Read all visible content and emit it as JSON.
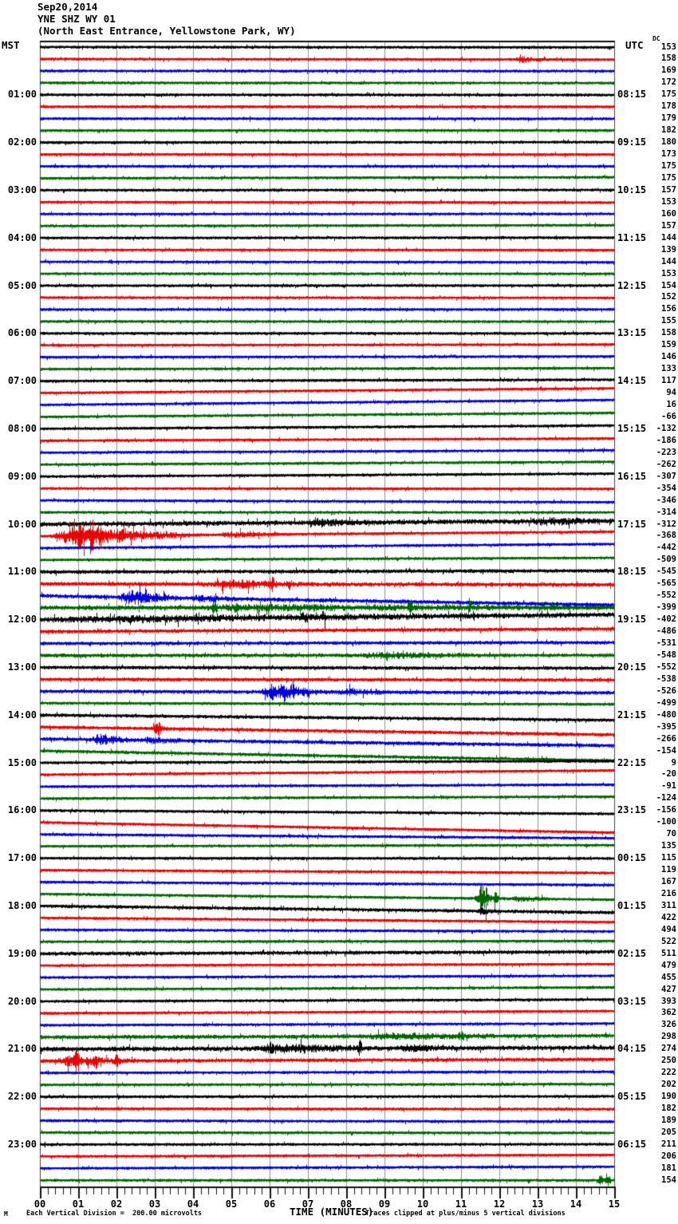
{
  "header": {
    "date": "Sep20,2014",
    "station": "YNE SHZ WY 01",
    "location": "(North East Entrance, Yellowstone Park, WY)"
  },
  "axis": {
    "left_header": "MST",
    "right_header": "UTC",
    "dc_header": "DC",
    "x_axis_label": "TIME (MINUTES)",
    "x_tick_labels": [
      "00",
      "01",
      "02",
      "03",
      "04",
      "05",
      "06",
      "07",
      "08",
      "09",
      "10",
      "11",
      "12",
      "13",
      "14",
      "15"
    ]
  },
  "footer": {
    "corner_mark": "M",
    "scale_note": "Each Vertical Division =  200.00 microvolts",
    "clip_note": "Traces clipped at plus/minus 5 vertical divisions"
  },
  "chart_data": {
    "type": "line",
    "subtype": "helicorder-seismogram",
    "title": "YNE SHZ WY 01 (North East Entrance, Yellowstone Park, WY)",
    "date": "Sep20,2014",
    "xlabel": "TIME (MINUTES)",
    "x_range_minutes": [
      0,
      15
    ],
    "minutes_per_trace": 15,
    "traces_per_hour": 4,
    "num_traces": 96,
    "grid": "vertical-minute-lines",
    "trace_color_cycle": [
      "#000000",
      "#ee0000",
      "#0000dd",
      "#006600"
    ],
    "grid_color": "#909090",
    "left_time_labels": [
      "01:00",
      "02:00",
      "03:00",
      "04:00",
      "05:00",
      "06:00",
      "07:00",
      "08:00",
      "09:00",
      "10:00",
      "11:00",
      "12:00",
      "13:00",
      "14:00",
      "15:00",
      "16:00",
      "17:00",
      "18:00",
      "19:00",
      "20:00",
      "21:00",
      "22:00",
      "23:00"
    ],
    "right_time_labels": [
      "08:15",
      "09:15",
      "10:15",
      "11:15",
      "12:15",
      "13:15",
      "14:15",
      "15:15",
      "16:15",
      "17:15",
      "18:15",
      "19:15",
      "20:15",
      "21:15",
      "22:15",
      "23:15",
      "00:15",
      "01:15",
      "02:15",
      "03:15",
      "04:15",
      "05:15",
      "06:15"
    ],
    "first_hour_label_row": 4,
    "hour_label_row_step": 4,
    "dc_offsets_microvolts": [
      153,
      158,
      169,
      172,
      175,
      178,
      179,
      182,
      180,
      173,
      175,
      175,
      157,
      153,
      160,
      157,
      144,
      139,
      144,
      153,
      154,
      152,
      156,
      155,
      158,
      159,
      146,
      133,
      117,
      94,
      16,
      -66,
      -132,
      -186,
      -223,
      -262,
      -307,
      -354,
      -346,
      -314,
      -312,
      -368,
      -442,
      -509,
      -545,
      -565,
      -552,
      -399,
      -402,
      -486,
      -531,
      -548,
      -552,
      -538,
      -526,
      -499,
      -480,
      -395,
      -266,
      -154,
      9,
      -20,
      -91,
      -124,
      -156,
      -100,
      70,
      135,
      115,
      119,
      167,
      216,
      311,
      422,
      494,
      522,
      511,
      479,
      455,
      427,
      393,
      362,
      326,
      298,
      274,
      250,
      222,
      202,
      190,
      182,
      189,
      205,
      211,
      206,
      181,
      154
    ],
    "microvolts_per_division": 200.0,
    "clip_divisions": 5,
    "row_noise_level": {
      "40": 1.6,
      "44": 1.2,
      "45": 1.3,
      "46": 1.3,
      "47": 1.5,
      "48": 1.7,
      "49": 1.2,
      "50": 1.1,
      "51": 1.2,
      "52": 1.1,
      "53": 1.1,
      "54": 1.2,
      "56": 1.1,
      "57": 1.1,
      "58": 1.2,
      "59": 1.1,
      "72": 1.1,
      "76": 1.2,
      "83": 1.3,
      "84": 1.5,
      "85": 1.2
    },
    "events": [
      {
        "row": 1,
        "start": 12.4,
        "end": 13.3,
        "amp": 1.8,
        "spikes": []
      },
      {
        "row": 40,
        "start": 6.9,
        "end": 8.7,
        "amp": 2.2,
        "spikes": []
      },
      {
        "row": 40,
        "start": 12.8,
        "end": 15.0,
        "amp": 1.8,
        "spikes": []
      },
      {
        "row": 41,
        "start": 0.25,
        "end": 4.6,
        "amp": 6.5,
        "spikes": [
          {
            "t": 1.05,
            "a": 5
          },
          {
            "t": 1.35,
            "a": 13
          },
          {
            "t": 1.6,
            "a": 7
          },
          {
            "t": 2.2,
            "a": 4
          }
        ]
      },
      {
        "row": 41,
        "start": 4.6,
        "end": 6.8,
        "amp": 1.6,
        "spikes": []
      },
      {
        "row": 45,
        "start": 4.4,
        "end": 7.3,
        "amp": 2.6,
        "spikes": [
          {
            "t": 6.05,
            "a": 5
          },
          {
            "t": 6.5,
            "a": 3
          }
        ]
      },
      {
        "row": 46,
        "start": 2.05,
        "end": 3.9,
        "amp": 4.2,
        "spikes": [
          {
            "t": 2.75,
            "a": 3
          }
        ]
      },
      {
        "row": 46,
        "start": 3.9,
        "end": 5.5,
        "amp": 1.5,
        "spikes": []
      },
      {
        "row": 47,
        "start": 3.8,
        "end": 15.0,
        "amp": 1.2,
        "spikes": [
          {
            "t": 4.55,
            "a": 4
          },
          {
            "t": 5.15,
            "a": 4
          },
          {
            "t": 9.65,
            "a": 6
          },
          {
            "t": 11.2,
            "a": 3
          },
          {
            "t": 13.4,
            "a": 2.5
          }
        ]
      },
      {
        "row": 48,
        "start": 0.0,
        "end": 15.0,
        "amp": 1.2,
        "spikes": [
          {
            "t": 6.9,
            "a": 3
          },
          {
            "t": 7.4,
            "a": 3
          },
          {
            "t": 11.3,
            "a": 2.5
          }
        ]
      },
      {
        "row": 51,
        "start": 8.2,
        "end": 12.5,
        "amp": 1.5,
        "spikes": []
      },
      {
        "row": 54,
        "start": 5.75,
        "end": 7.7,
        "amp": 5.0,
        "spikes": [
          {
            "t": 6.35,
            "a": 4
          },
          {
            "t": 6.6,
            "a": 4
          }
        ]
      },
      {
        "row": 54,
        "start": 7.7,
        "end": 9.5,
        "amp": 1.6,
        "spikes": []
      },
      {
        "row": 57,
        "start": 2.9,
        "end": 3.4,
        "amp": 2.0,
        "spikes": [
          {
            "t": 3.1,
            "a": 3.5
          }
        ]
      },
      {
        "row": 58,
        "start": 1.35,
        "end": 2.6,
        "amp": 3.2,
        "spikes": []
      },
      {
        "row": 58,
        "start": 2.6,
        "end": 4.2,
        "amp": 1.4,
        "spikes": []
      },
      {
        "row": 71,
        "start": 11.3,
        "end": 12.3,
        "amp": 3.0,
        "spikes": [
          {
            "t": 11.52,
            "a": 11
          },
          {
            "t": 11.65,
            "a": 7
          },
          {
            "t": 11.9,
            "a": 4
          }
        ]
      },
      {
        "row": 71,
        "start": 12.3,
        "end": 13.6,
        "amp": 1.6,
        "spikes": []
      },
      {
        "row": 72,
        "start": 11.4,
        "end": 12.0,
        "amp": 1.5,
        "spikes": []
      },
      {
        "row": 83,
        "start": 8.3,
        "end": 13.2,
        "amp": 1.5,
        "spikes": [
          {
            "t": 11.0,
            "a": 2.5
          }
        ]
      },
      {
        "row": 84,
        "start": 5.6,
        "end": 9.3,
        "amp": 2.2,
        "spikes": [
          {
            "t": 6.0,
            "a": 2.5
          },
          {
            "t": 8.35,
            "a": 4.5
          }
        ]
      },
      {
        "row": 84,
        "start": 9.3,
        "end": 11.2,
        "amp": 1.6,
        "spikes": []
      },
      {
        "row": 85,
        "start": 0.35,
        "end": 3.0,
        "amp": 2.5,
        "spikes": [
          {
            "t": 0.95,
            "a": 10
          },
          {
            "t": 1.45,
            "a": 4
          },
          {
            "t": 2.0,
            "a": 3.5
          }
        ]
      },
      {
        "row": 95,
        "start": 14.55,
        "end": 15.0,
        "amp": 3.0,
        "spikes": [
          {
            "t": 14.82,
            "a": 5
          }
        ]
      }
    ]
  }
}
